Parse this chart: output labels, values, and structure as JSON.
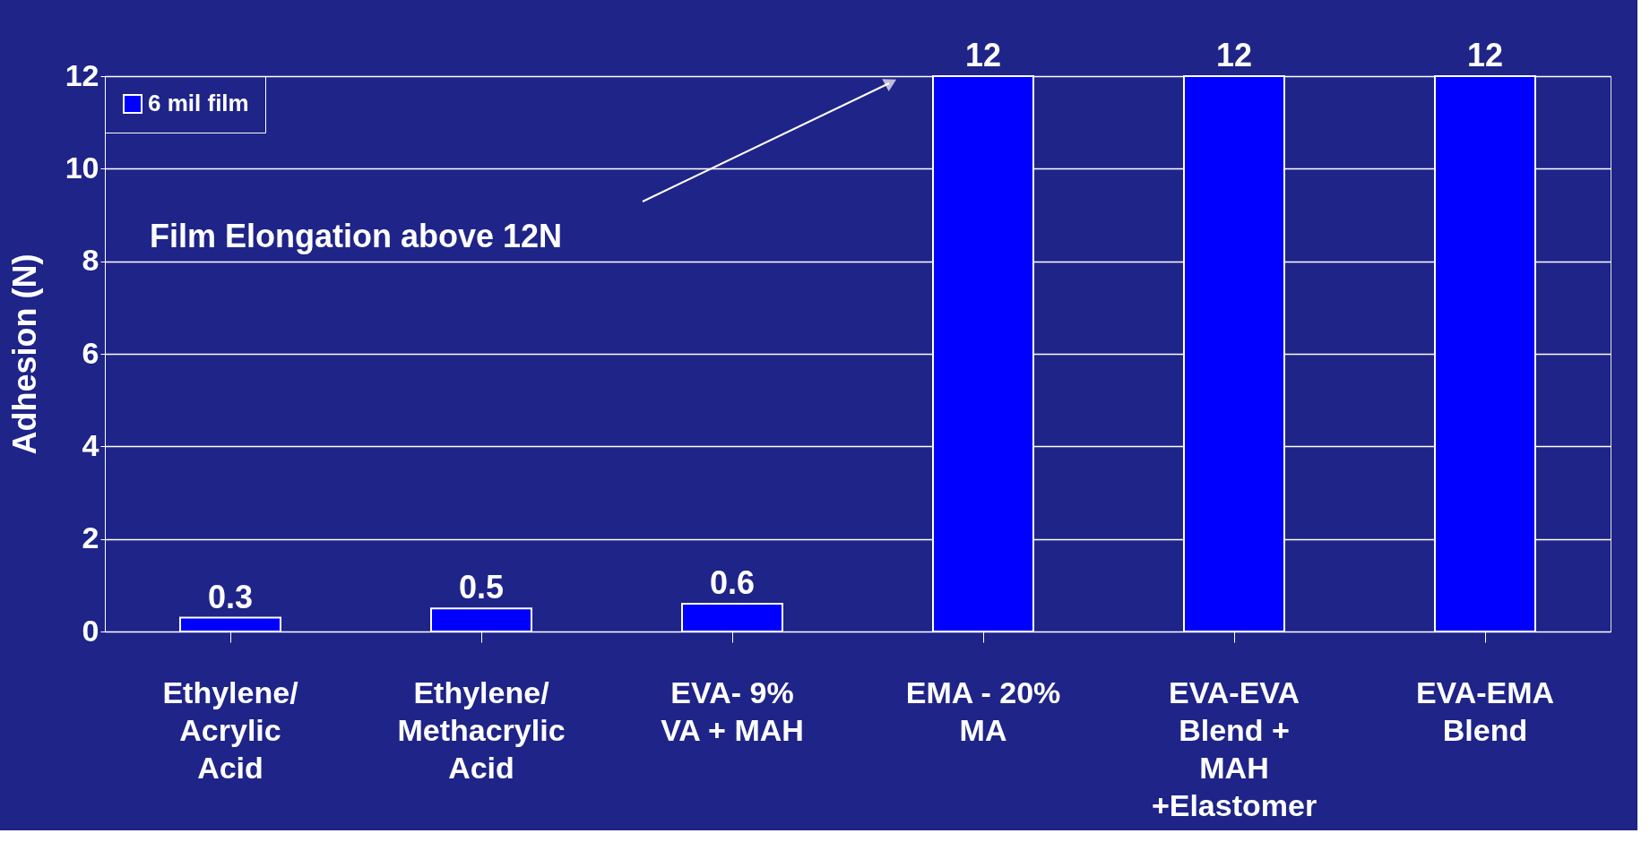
{
  "chart_data": {
    "type": "bar",
    "ylabel": "Adhesion (N)",
    "categories": [
      "Ethylene/\nAcrylic\nAcid",
      "Ethylene/\nMethacrylic\nAcid",
      "EVA-  9%\nVA + MAH",
      "EMA - 20%\nMA",
      "EVA-EVA\nBlend +\nMAH\n+Elastomer",
      "EVA-EMA\nBlend"
    ],
    "series": [
      {
        "name": "6 mil film",
        "color": "#0000ff",
        "values": [
          0.3,
          0.5,
          0.6,
          12,
          12,
          12
        ]
      }
    ],
    "data_labels": true,
    "ylim": [
      0,
      12
    ],
    "yticks": [
      0,
      2,
      4,
      6,
      8,
      10,
      12
    ],
    "grid": "y",
    "legend": "top left",
    "annotations": [
      "Film Elongation above 12N"
    ]
  }
}
